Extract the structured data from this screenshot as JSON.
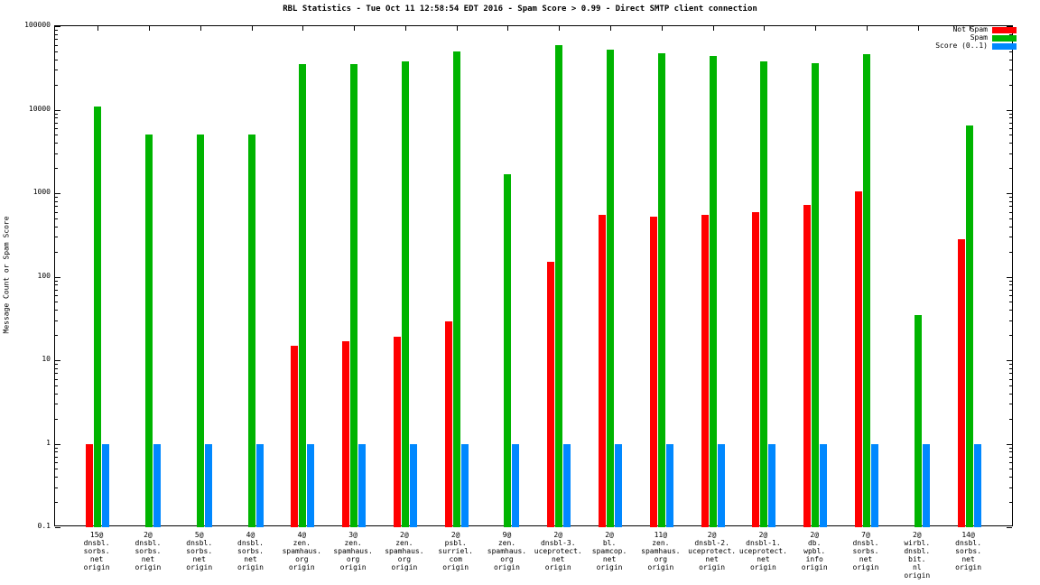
{
  "title": "RBL Statistics - Tue Oct 11 12:58:54 EDT 2016 - Spam Score > 0.99 - Direct SMTP client connection",
  "chart_data": {
    "type": "bar",
    "ylabel": "Message Count or Spam Score",
    "yscale": "log",
    "ylim": [
      0.1,
      100000
    ],
    "yticks": [
      0.1,
      1,
      10,
      100,
      1000,
      10000,
      100000
    ],
    "ytick_labels": [
      "0.1",
      "1",
      "10",
      "100",
      "1000",
      "10000",
      "100000"
    ],
    "grid": false,
    "legend_position": "top-right",
    "categories": [
      [
        "15@",
        "dnsbl.",
        "sorbs.",
        "net",
        "origin"
      ],
      [
        "2@",
        "dnsbl.",
        "sorbs.",
        "net",
        "origin"
      ],
      [
        "5@",
        "dnsbl.",
        "sorbs.",
        "net",
        "origin"
      ],
      [
        "4@",
        "dnsbl.",
        "sorbs.",
        "net",
        "origin"
      ],
      [
        "4@",
        "zen.",
        "spamhaus.",
        "org",
        "origin"
      ],
      [
        "3@",
        "zen.",
        "spamhaus.",
        "org",
        "origin"
      ],
      [
        "2@",
        "zen.",
        "spamhaus.",
        "org",
        "origin"
      ],
      [
        "2@",
        "psbl.",
        "surriel.",
        "com",
        "origin"
      ],
      [
        "9@",
        "zen.",
        "spamhaus.",
        "org",
        "origin"
      ],
      [
        "2@",
        "dnsbl-3.",
        "uceprotect.",
        "net",
        "origin"
      ],
      [
        "2@",
        "bl.",
        "spamcop.",
        "net",
        "origin"
      ],
      [
        "11@",
        "zen.",
        "spamhaus.",
        "org",
        "origin"
      ],
      [
        "2@",
        "dnsbl-2.",
        "uceprotect.",
        "net",
        "origin"
      ],
      [
        "2@",
        "dnsbl-1.",
        "uceprotect.",
        "net",
        "origin"
      ],
      [
        "2@",
        "db.",
        "wpbl.",
        "info",
        "origin"
      ],
      [
        "7@",
        "dnsbl.",
        "sorbs.",
        "net",
        "origin"
      ],
      [
        "2@",
        "wirbl.",
        "dnsbl.",
        "bit.",
        "nl",
        "origin"
      ],
      [
        "14@",
        "dnsbl.",
        "sorbs.",
        "net",
        "origin"
      ]
    ],
    "series": [
      {
        "name": "Not Spam",
        "color": "#ff0000",
        "values": [
          1,
          null,
          null,
          null,
          15,
          17,
          19,
          29,
          null,
          150,
          550,
          520,
          550,
          600,
          730,
          1050,
          null,
          280
        ]
      },
      {
        "name": "Spam",
        "color": "#00b400",
        "values": [
          11000,
          5000,
          5000,
          5000,
          35000,
          35000,
          38000,
          50000,
          1700,
          60000,
          52000,
          47000,
          44000,
          38000,
          36000,
          46000,
          35,
          6500
        ]
      },
      {
        "name": "Score (0..1)",
        "color": "#0088ff",
        "values": [
          1,
          1,
          1,
          1,
          1,
          1,
          1,
          1,
          1,
          1,
          1,
          1,
          1,
          1,
          1,
          1,
          1,
          1
        ]
      }
    ]
  }
}
